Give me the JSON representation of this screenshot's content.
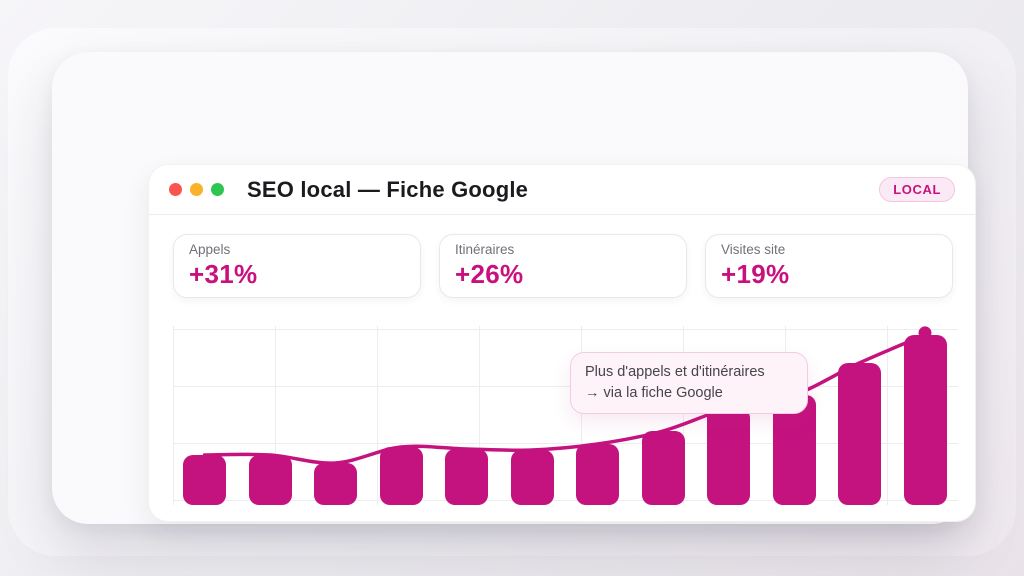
{
  "window": {
    "title": "SEO local — Fiche Google",
    "badge": "LOCAL",
    "traffic_lights": {
      "close": "#f9544e",
      "minimize": "#f8b32a",
      "maximize": "#2ec653"
    }
  },
  "stats": [
    {
      "label": "Appels",
      "value": "+31%"
    },
    {
      "label": "Itinéraires",
      "value": "+26%"
    },
    {
      "label": "Visites site",
      "value": "+19%"
    }
  ],
  "chart_data": {
    "type": "bar",
    "x": [
      1,
      2,
      3,
      4,
      5,
      6,
      7,
      8,
      9,
      10,
      11,
      12
    ],
    "series": [
      {
        "name": "volume-bars",
        "type": "bar",
        "values": [
          50,
          50,
          42,
          58,
          56,
          55,
          61,
          74,
          97,
          110,
          142,
          170
        ]
      },
      {
        "name": "trend-line",
        "type": "line",
        "values": [
          50,
          50,
          42,
          58,
          56,
          55,
          61,
          74,
          97,
          110,
          142,
          170
        ],
        "end_marker": true
      }
    ],
    "title": "",
    "xlabel": "",
    "ylabel": "",
    "ylim": [
      0,
      180
    ],
    "grid": true,
    "tick_labels": "none",
    "legend": "none",
    "annotation": {
      "line1": "Plus d'appels et d'itinéraires",
      "line2": "→ via la fiche Google"
    }
  },
  "colors": {
    "accent": "#c4137f",
    "accent_text": "#c9107f",
    "badge_bg": "#fbeaf5",
    "badge_border": "#f1c7e0",
    "tooltip_bg": "#fdf3f8",
    "tooltip_border": "#f2cce2",
    "grid": "#ededf0",
    "label_gray": "#70707a",
    "title_color": "#1b1b1f"
  }
}
